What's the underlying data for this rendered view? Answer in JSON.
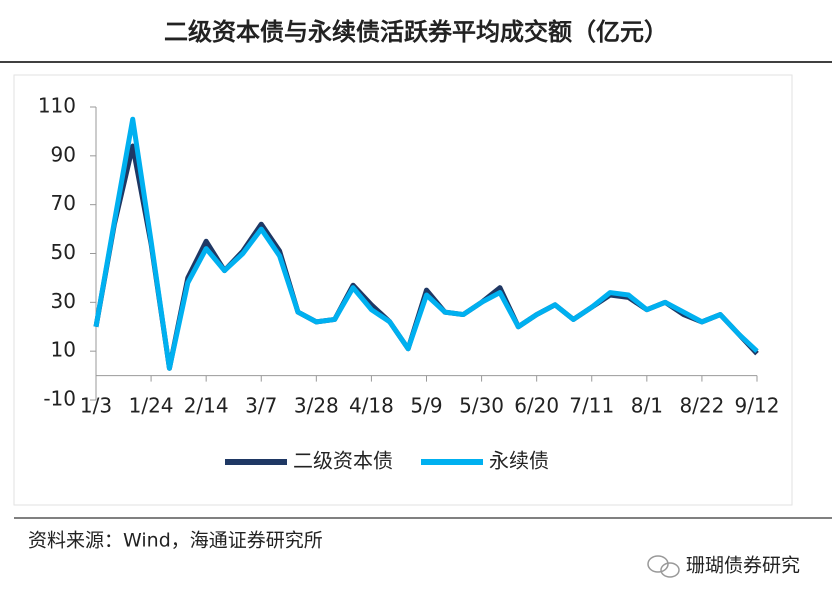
{
  "chart_data": {
    "type": "line",
    "title": "二级资本债与永续债活跃券平均成交额（亿元）",
    "categories": [
      "1/3",
      null,
      null,
      "1/24",
      null,
      null,
      "2/14",
      null,
      null,
      "3/7",
      null,
      null,
      "3/28",
      null,
      null,
      "4/18",
      null,
      null,
      "5/9",
      null,
      null,
      "5/30",
      null,
      null,
      "6/20",
      null,
      null,
      "7/11",
      null,
      null,
      "8/1",
      null,
      null,
      "8/22",
      null,
      null,
      "9/12"
    ],
    "series": [
      {
        "name": "二级资本债",
        "color": "#1f3864",
        "values": [
          20,
          62,
          94,
          54,
          3,
          40,
          55,
          43,
          51,
          62,
          51,
          26,
          22,
          23,
          37,
          29,
          22,
          11,
          35,
          26,
          25,
          30,
          36,
          20,
          25,
          29,
          23,
          28,
          33,
          32,
          27,
          30,
          25,
          22,
          25,
          17,
          9
        ]
      },
      {
        "name": "永续债",
        "color": "#00b0f0",
        "values": [
          20,
          63,
          105,
          55,
          3,
          38,
          52,
          43,
          50,
          60,
          49,
          26,
          22,
          23,
          36,
          27,
          22,
          11,
          33,
          26,
          25,
          30,
          34,
          20,
          25,
          29,
          23,
          28,
          34,
          33,
          27,
          30,
          26,
          22,
          25,
          17,
          10
        ]
      }
    ],
    "ylim": [
      -10,
      110
    ],
    "yticks": [
      -10,
      10,
      30,
      50,
      70,
      90,
      110
    ],
    "legend": "bottom"
  },
  "source": "资料来源：Wind，海通证券研究所",
  "watermark": "珊瑚债券研究"
}
